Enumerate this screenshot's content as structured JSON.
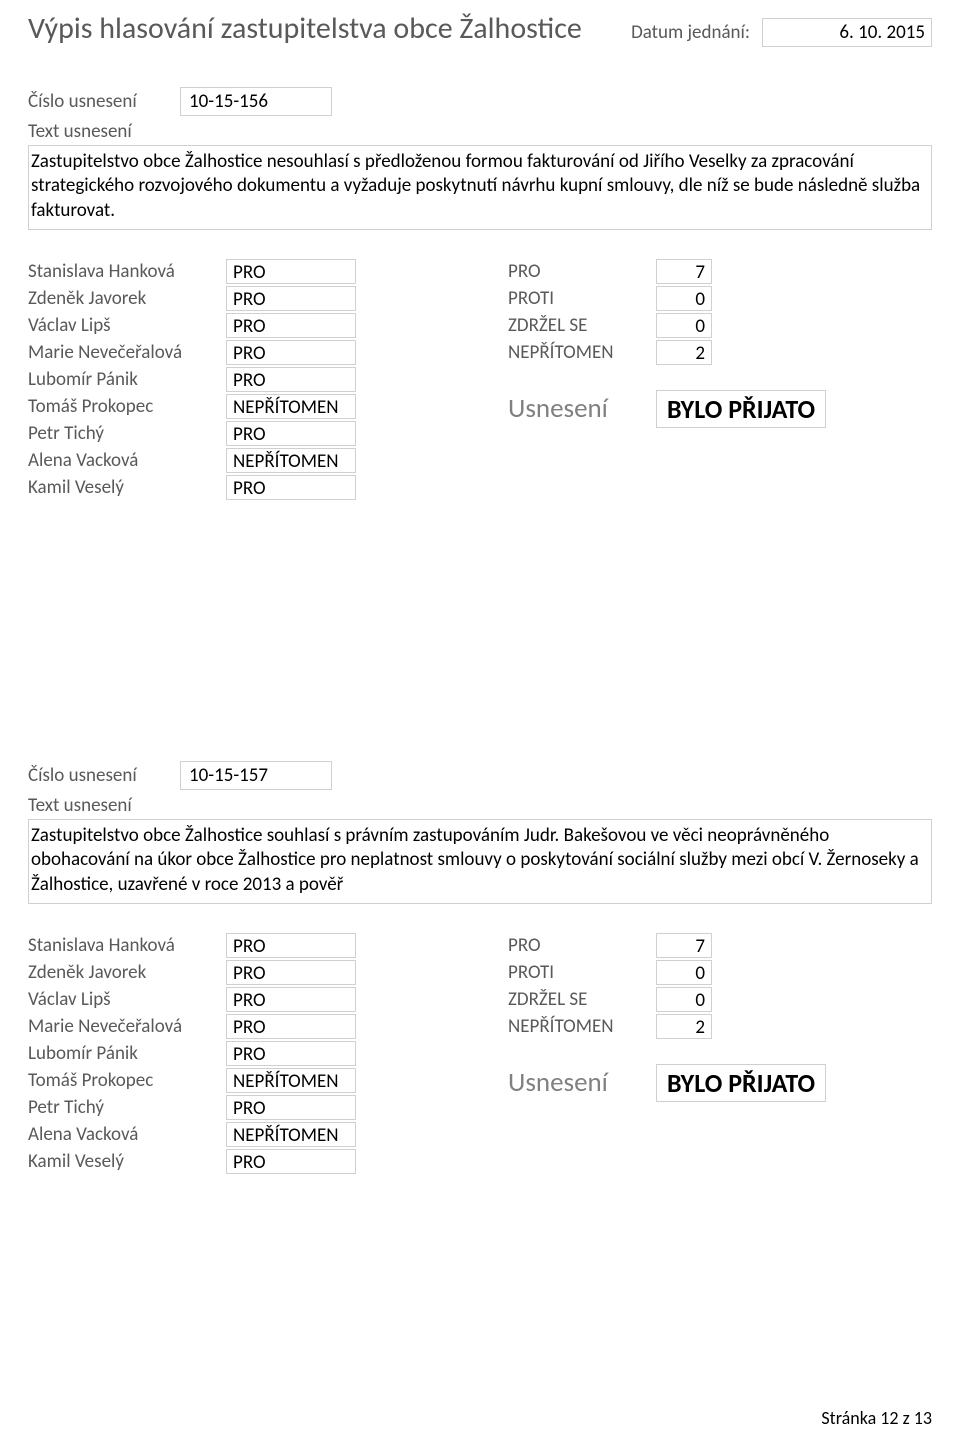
{
  "header": {
    "title": "Výpis hlasování zastupitelstva obce Žalhostice",
    "date_label": "Datum jednání:",
    "date_value": "6. 10. 2015"
  },
  "labels": {
    "cislo": "Číslo usnesení",
    "text": "Text usnesení",
    "result": "Usnesení"
  },
  "summary_labels": {
    "pro": "PRO",
    "proti": "PROTI",
    "zdrzel": "ZDRŽEL SE",
    "nepritomen": "NEPŘÍTOMEN"
  },
  "blocks": [
    {
      "cislo": "10-15-156",
      "text": "Zastupitelstvo obce Žalhostice nesouhlasí s předloženou formou fakturování od Jiřího Veselky za zpracování strategického rozvojového dokumentu a vyžaduje poskytnutí návrhu kupní smlouvy, dle níž se bude následně služba fakturovat.",
      "votes": [
        {
          "name": "Stanislava Hanková",
          "vote": "PRO"
        },
        {
          "name": "Zdeněk Javorek",
          "vote": "PRO"
        },
        {
          "name": "Václav Lipš",
          "vote": "PRO"
        },
        {
          "name": "Marie Nevečeřalová",
          "vote": "PRO"
        },
        {
          "name": "Lubomír Pánik",
          "vote": "PRO"
        },
        {
          "name": "Tomáš Prokopec",
          "vote": "NEPŘÍTOMEN"
        },
        {
          "name": "Petr Tichý",
          "vote": "PRO"
        },
        {
          "name": "Alena Vacková",
          "vote": "NEPŘÍTOMEN"
        },
        {
          "name": "Kamil Veselý",
          "vote": "PRO"
        }
      ],
      "summary": {
        "pro": "7",
        "proti": "0",
        "zdrzel": "0",
        "nepritomen": "2"
      },
      "result": "BYLO PŘIJATO"
    },
    {
      "cislo": "10-15-157",
      "text": "Zastupitelstvo obce Žalhostice souhlasí s právním zastupováním Judr. Bakešovou ve věci neoprávněného obohacování na úkor obce Žalhostice pro neplatnost smlouvy o poskytování sociální služby mezi obcí V. Žernoseky a Žalhostice, uzavřené v roce 2013 a pověř",
      "votes": [
        {
          "name": "Stanislava Hanková",
          "vote": "PRO"
        },
        {
          "name": "Zdeněk Javorek",
          "vote": "PRO"
        },
        {
          "name": "Václav Lipš",
          "vote": "PRO"
        },
        {
          "name": "Marie Nevečeřalová",
          "vote": "PRO"
        },
        {
          "name": "Lubomír Pánik",
          "vote": "PRO"
        },
        {
          "name": "Tomáš Prokopec",
          "vote": "NEPŘÍTOMEN"
        },
        {
          "name": "Petr Tichý",
          "vote": "PRO"
        },
        {
          "name": "Alena Vacková",
          "vote": "NEPŘÍTOMEN"
        },
        {
          "name": "Kamil Veselý",
          "vote": "PRO"
        }
      ],
      "summary": {
        "pro": "7",
        "proti": "0",
        "zdrzel": "0",
        "nepritomen": "2"
      },
      "result": "BYLO PŘIJATO"
    }
  ],
  "footer": "Stránka 12 z 13",
  "style": {
    "border_color": "#d0d0d0",
    "muted_color": "#595959",
    "text_color": "#000000",
    "result_label_color": "#808080",
    "title_fontsize": 30,
    "body_fontsize": 19,
    "result_fontsize": 26
  }
}
